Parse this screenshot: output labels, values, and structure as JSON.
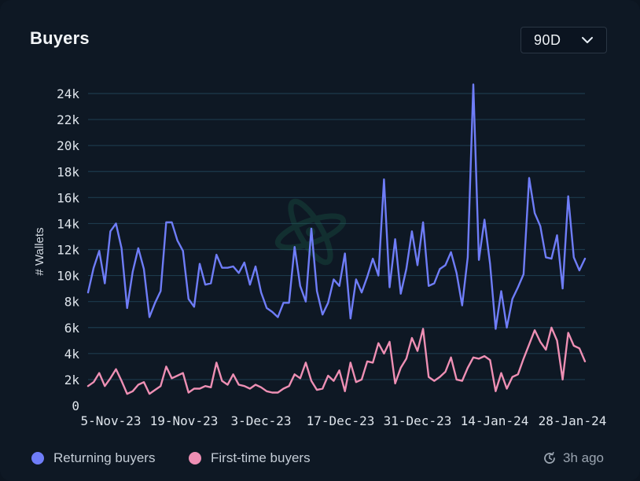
{
  "header": {
    "title": "Buyers",
    "range_value": "90D"
  },
  "footer": {
    "updated_text": "3h ago"
  },
  "icons": {
    "range_chevron": "chevron-down-icon",
    "updated": "refresh-clock-icon",
    "watermark": "atom-logo-watermark"
  },
  "colors": {
    "returning": "#6f7df8",
    "first_time": "#ee8fb4",
    "grid": "#1d3a4c",
    "background": "#0e1824"
  },
  "chart_data": {
    "type": "line",
    "title": "Buyers",
    "xlabel": "",
    "ylabel": "# Wallets",
    "ylim": [
      0,
      25000
    ],
    "yticks": [
      0,
      2000,
      4000,
      6000,
      8000,
      10000,
      12000,
      14000,
      16000,
      18000,
      20000,
      22000,
      24000
    ],
    "ytick_labels": [
      "0",
      "2k",
      "4k",
      "6k",
      "8k",
      "10k",
      "12k",
      "14k",
      "16k",
      "18k",
      "20k",
      "22k",
      "24k"
    ],
    "x_tick_labels": [
      "5-Nov-23",
      "19-Nov-23",
      "3-Dec-23",
      "17-Dec-23",
      "31-Dec-23",
      "14-Jan-24",
      "28-Jan-24"
    ],
    "x_start": "2023-11-05",
    "x_end": "2024-01-31",
    "grid": true,
    "legend_position": "bottom-left",
    "series": [
      {
        "name": "Returning buyers",
        "color": "#6f7df8",
        "values": [
          8700,
          10600,
          11900,
          9400,
          13400,
          14000,
          12100,
          7500,
          10300,
          12100,
          10500,
          6800,
          7900,
          8800,
          14100,
          14100,
          12700,
          11900,
          8200,
          7600,
          10900,
          9300,
          9400,
          11600,
          10600,
          10600,
          10700,
          10200,
          11000,
          9300,
          10700,
          8700,
          7500,
          7200,
          6800,
          7900,
          7900,
          12200,
          9200,
          8000,
          13600,
          8800,
          7000,
          7900,
          9700,
          9200,
          11700,
          6700,
          9700,
          8700,
          9900,
          11300,
          10000,
          17400,
          9100,
          12800,
          8600,
          10500,
          13400,
          10800,
          14100,
          9200,
          9400,
          10500,
          10800,
          11800,
          10200,
          7700,
          11400,
          24700,
          11200,
          14300,
          10900,
          5900,
          8800,
          6000,
          8200,
          9100,
          10100,
          17500,
          14800,
          13800,
          11400,
          11300,
          13100,
          9000,
          16100,
          11400,
          10400,
          11300
        ]
      },
      {
        "name": "First-time buyers",
        "color": "#ee8fb4",
        "values": [
          1500,
          1800,
          2500,
          1500,
          2100,
          2800,
          1900,
          900,
          1100,
          1600,
          1800,
          900,
          1200,
          1500,
          3000,
          2100,
          2300,
          2500,
          1000,
          1300,
          1300,
          1500,
          1400,
          3300,
          1900,
          1600,
          2400,
          1600,
          1500,
          1300,
          1600,
          1400,
          1100,
          1000,
          1000,
          1300,
          1500,
          2400,
          2100,
          3300,
          1900,
          1200,
          1300,
          2300,
          1900,
          2700,
          1100,
          3300,
          1800,
          2000,
          3400,
          3300,
          4800,
          4000,
          4900,
          1700,
          2900,
          3600,
          5200,
          4200,
          5900,
          2200,
          1900,
          2200,
          2600,
          3700,
          2000,
          1900,
          2900,
          3700,
          3600,
          3800,
          3500,
          1100,
          2500,
          1300,
          2200,
          2400,
          3600,
          4700,
          5800,
          4900,
          4300,
          6000,
          5000,
          2000,
          5600,
          4600,
          4400,
          3400
        ]
      }
    ]
  }
}
